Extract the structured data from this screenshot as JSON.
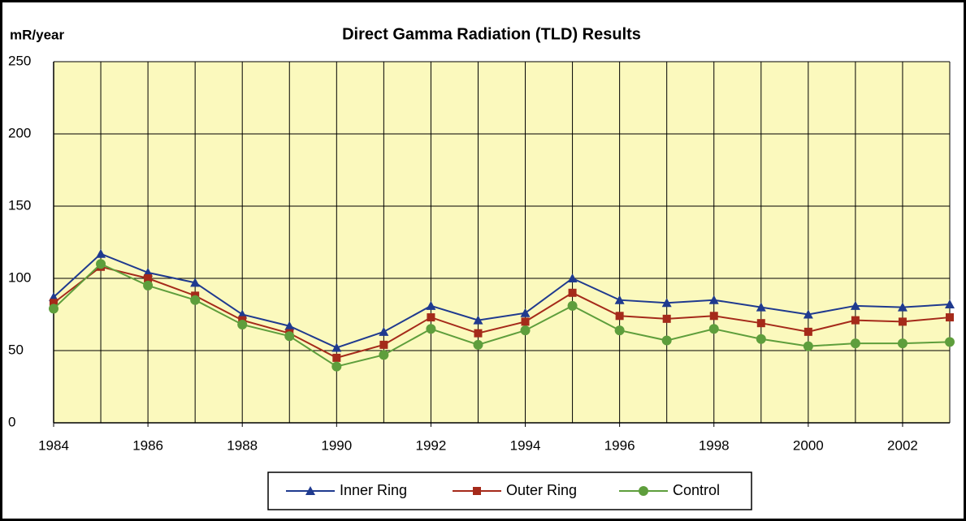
{
  "chart_data": {
    "type": "line",
    "title": "Direct Gamma Radiation (TLD) Results",
    "y_label": "mR/year",
    "x": [
      1984,
      1985,
      1986,
      1987,
      1988,
      1989,
      1990,
      1991,
      1992,
      1993,
      1994,
      1995,
      1996,
      1997,
      1998,
      1999,
      2000,
      2001,
      2002,
      2003
    ],
    "series": [
      {
        "name": "Inner Ring",
        "color": "#1f3a8f",
        "marker": "triangle",
        "values": [
          87,
          117,
          104,
          97,
          75,
          67,
          52,
          63,
          81,
          71,
          76,
          100,
          85,
          83,
          85,
          80,
          75,
          81,
          80,
          82
        ]
      },
      {
        "name": "Outer Ring",
        "color": "#a52a1a",
        "marker": "square",
        "values": [
          83,
          108,
          100,
          88,
          71,
          62,
          45,
          54,
          73,
          62,
          70,
          90,
          74,
          72,
          74,
          69,
          63,
          71,
          70,
          73
        ]
      },
      {
        "name": "Control",
        "color": "#5e9e3c",
        "marker": "circle",
        "values": [
          79,
          110,
          95,
          85,
          68,
          60,
          39,
          47,
          65,
          54,
          64,
          81,
          64,
          57,
          65,
          58,
          53,
          55,
          55,
          56
        ]
      }
    ],
    "xlim": [
      1984,
      2003
    ],
    "xticks": [
      1984,
      1986,
      1988,
      1990,
      1992,
      1994,
      1996,
      1998,
      2000,
      2002
    ],
    "ylim": [
      0,
      250
    ],
    "yticks": [
      0,
      50,
      100,
      150,
      200,
      250
    ],
    "grid": true,
    "legend": "bottom"
  }
}
